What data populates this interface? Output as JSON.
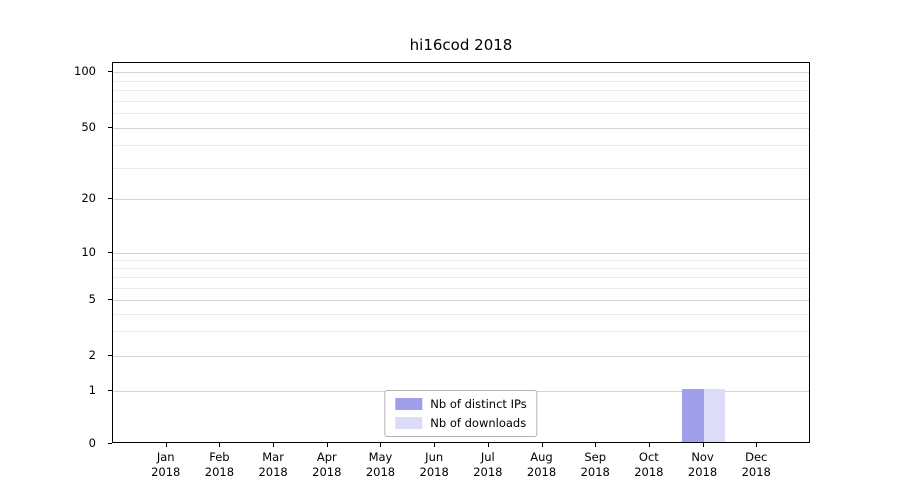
{
  "chart_data": {
    "type": "bar",
    "title": "hi16cod 2018",
    "x": {
      "categories": [
        {
          "month": "Jan",
          "year": "2018"
        },
        {
          "month": "Feb",
          "year": "2018"
        },
        {
          "month": "Mar",
          "year": "2018"
        },
        {
          "month": "Apr",
          "year": "2018"
        },
        {
          "month": "May",
          "year": "2018"
        },
        {
          "month": "Jun",
          "year": "2018"
        },
        {
          "month": "Jul",
          "year": "2018"
        },
        {
          "month": "Aug",
          "year": "2018"
        },
        {
          "month": "Sep",
          "year": "2018"
        },
        {
          "month": "Oct",
          "year": "2018"
        },
        {
          "month": "Nov",
          "year": "2018"
        },
        {
          "month": "Dec",
          "year": "2018"
        }
      ]
    },
    "y_axis": {
      "scale": "symlog",
      "ticks": [
        0,
        1,
        2,
        5,
        10,
        20,
        50,
        100
      ],
      "minor_gridlines": [
        3,
        4,
        6,
        7,
        8,
        9,
        30,
        40,
        60,
        70,
        80,
        90
      ],
      "grid": true
    },
    "series": [
      {
        "name": "Nb of distinct IPs",
        "color": "#9f9fea",
        "values": [
          0,
          0,
          0,
          0,
          0,
          0,
          0,
          0,
          0,
          0,
          1,
          0
        ]
      },
      {
        "name": "Nb of downloads",
        "color": "#dcdcf8",
        "values": [
          0,
          0,
          0,
          0,
          0,
          0,
          0,
          0,
          0,
          0,
          1,
          0
        ]
      }
    ],
    "legend": {
      "position": "lower center"
    }
  }
}
